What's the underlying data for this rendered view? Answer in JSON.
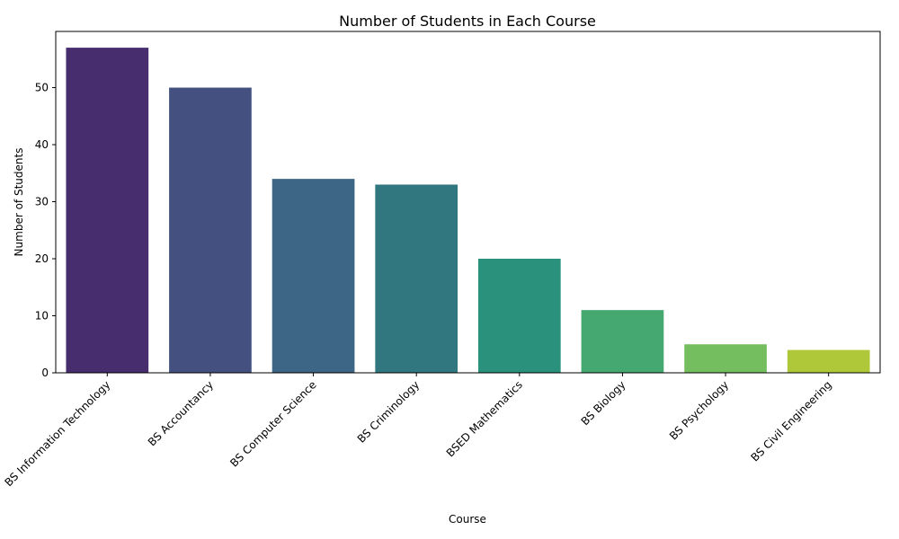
{
  "chart_data": {
    "type": "bar",
    "title": "Number of Students in Each Course",
    "xlabel": "Course",
    "ylabel": "Number of Students",
    "categories": [
      "BS Information Technology",
      "BS Accountancy",
      "BS Computer Science",
      "BS Criminology",
      "BSED Mathematics",
      "BS Biology",
      "BS Psychology",
      "BS Civil Engineering"
    ],
    "values": [
      57,
      50,
      34,
      33,
      20,
      11,
      5,
      4
    ],
    "colors": [
      "#472c6e",
      "#44507f",
      "#3d6585",
      "#317780",
      "#2a917c",
      "#46a871",
      "#74be5f",
      "#aec839"
    ],
    "ylim": [
      0,
      59.85
    ],
    "yticks": [
      0,
      10,
      20,
      30,
      40,
      50
    ],
    "grid": false,
    "legend": "none",
    "x_tick_rotation_deg": 45
  }
}
